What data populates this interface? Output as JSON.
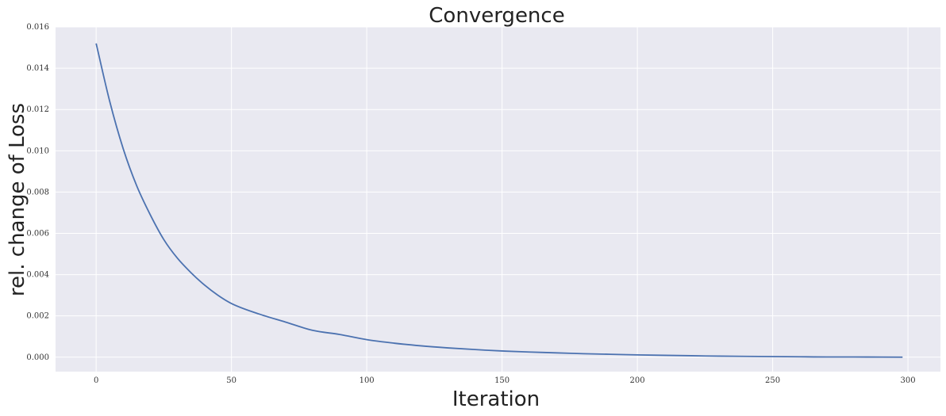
{
  "chart_data": {
    "type": "line",
    "title": "Convergence",
    "xlabel": "Iteration",
    "ylabel": "rel. change of Loss",
    "xlim": [
      -15,
      312
    ],
    "ylim": [
      -0.0007,
      0.016
    ],
    "xticks": [
      0,
      50,
      100,
      150,
      200,
      250,
      300
    ],
    "yticks": [
      0.0,
      0.002,
      0.004,
      0.006,
      0.008,
      0.01,
      0.012,
      0.014,
      0.016
    ],
    "ytick_labels": [
      "0.000",
      "0.002",
      "0.004",
      "0.006",
      "0.008",
      "0.010",
      "0.012",
      "0.014",
      "0.016"
    ],
    "xtick_labels": [
      "0",
      "50",
      "100",
      "150",
      "200",
      "250",
      "300"
    ],
    "grid": true,
    "colors": {
      "background": "#e9e9f1",
      "grid": "#ffffff",
      "line": "#4c72b0"
    },
    "series": [
      {
        "x": [
          0,
          5,
          10,
          15,
          20,
          25,
          30,
          35,
          40,
          45,
          50,
          60,
          70,
          80,
          90,
          100,
          110,
          120,
          130,
          140,
          150,
          160,
          170,
          180,
          190,
          200,
          210,
          220,
          230,
          240,
          250,
          260,
          270,
          280,
          290,
          298
        ],
        "y": [
          0.0152,
          0.0124,
          0.0101,
          0.0083,
          0.0069,
          0.0057,
          0.0048,
          0.0041,
          0.0035,
          0.003,
          0.0026,
          0.0021,
          0.0017,
          0.0013,
          0.0011,
          0.00085,
          0.00068,
          0.00055,
          0.00045,
          0.00037,
          0.0003,
          0.00025,
          0.00021,
          0.00017,
          0.00014,
          0.00011,
          9e-05,
          7e-05,
          5e-05,
          4e-05,
          3e-05,
          2e-05,
          1e-05,
          1e-05,
          5e-06,
          0.0
        ]
      }
    ]
  }
}
